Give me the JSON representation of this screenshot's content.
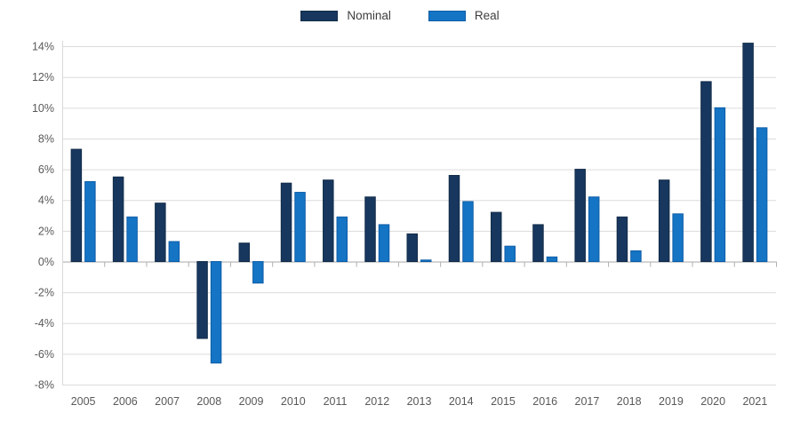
{
  "chart_data": {
    "type": "bar",
    "title": "",
    "xlabel": "",
    "ylabel": "",
    "categories": [
      "2005",
      "2006",
      "2007",
      "2008",
      "2009",
      "2010",
      "2011",
      "2012",
      "2013",
      "2014",
      "2015",
      "2016",
      "2017",
      "2018",
      "2019",
      "2020",
      "2021"
    ],
    "series": [
      {
        "name": "Nominal",
        "color": "#17375E",
        "border_color": "#122C49",
        "values": [
          7.3,
          5.5,
          3.8,
          -5.0,
          1.2,
          5.1,
          5.3,
          4.2,
          1.8,
          5.6,
          3.2,
          2.4,
          6.0,
          2.9,
          5.3,
          11.7,
          14.2
        ]
      },
      {
        "name": "Real",
        "color": "#1574C4",
        "border_color": "#0E5DA8",
        "values": [
          5.2,
          2.9,
          1.3,
          -6.6,
          -1.4,
          4.5,
          2.9,
          2.4,
          0.1,
          3.9,
          1.0,
          0.3,
          4.2,
          0.7,
          3.1,
          10.0,
          8.7
        ]
      }
    ],
    "y_ticks": [
      14,
      12,
      10,
      8,
      6,
      4,
      2,
      0,
      -2,
      -4,
      -6,
      -8
    ],
    "y_tick_suffix": "%",
    "ylim": [
      -8,
      14.35
    ],
    "grid": true,
    "legend_position": "top-center",
    "colors": {
      "background": "#FFFFFF",
      "gridline": "#DCDCDC",
      "zero_line": "#A9A9A9",
      "axis_line": "#D9D9D9",
      "tick_mark": "#B0B0B0",
      "tick_label": "#595959"
    }
  }
}
